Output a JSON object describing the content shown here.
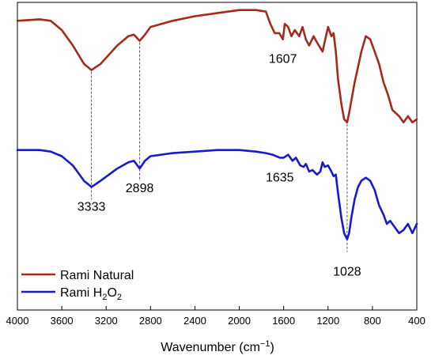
{
  "chart_data": {
    "type": "line",
    "title": "",
    "xlabel": "Wavenumber (cm",
    "xlabel_sup": "−1",
    "xlabel_close": ")",
    "ylabel": "",
    "xlim": [
      4000,
      400
    ],
    "x_reversed": true,
    "x_ticks": [
      4000,
      3600,
      3200,
      2800,
      2400,
      2000,
      1600,
      1200,
      800,
      400
    ],
    "x_tick_labels": [
      "4000",
      "3600",
      "3200",
      "2800",
      "2400",
      "2000",
      "1600",
      "1200",
      "800",
      "400"
    ],
    "y_axis_visible": false,
    "ylim": [
      0,
      100
    ],
    "grid": false,
    "legend_position": "bottom-left",
    "series": [
      {
        "name": "Rami Natural",
        "name_parts": [
          "Rami Natural"
        ],
        "color": "#a52a1a",
        "points": [
          [
            4000,
            94
          ],
          [
            3800,
            94.5
          ],
          [
            3700,
            94
          ],
          [
            3600,
            91
          ],
          [
            3500,
            86
          ],
          [
            3400,
            80
          ],
          [
            3333,
            78
          ],
          [
            3250,
            80
          ],
          [
            3100,
            86
          ],
          [
            3000,
            89
          ],
          [
            2950,
            89.5
          ],
          [
            2898,
            87.5
          ],
          [
            2850,
            89.5
          ],
          [
            2800,
            92
          ],
          [
            2600,
            94
          ],
          [
            2400,
            95.5
          ],
          [
            2200,
            96.5
          ],
          [
            2000,
            97.5
          ],
          [
            1850,
            97.5
          ],
          [
            1760,
            97
          ],
          [
            1720,
            93
          ],
          [
            1680,
            90
          ],
          [
            1640,
            90
          ],
          [
            1607,
            88
          ],
          [
            1590,
            93
          ],
          [
            1560,
            92
          ],
          [
            1530,
            89
          ],
          [
            1500,
            91
          ],
          [
            1460,
            89
          ],
          [
            1430,
            92
          ],
          [
            1400,
            88
          ],
          [
            1370,
            86
          ],
          [
            1330,
            89
          ],
          [
            1300,
            87
          ],
          [
            1250,
            84
          ],
          [
            1200,
            92
          ],
          [
            1170,
            89
          ],
          [
            1150,
            90
          ],
          [
            1130,
            84
          ],
          [
            1110,
            75
          ],
          [
            1080,
            67
          ],
          [
            1055,
            62
          ],
          [
            1028,
            61
          ],
          [
            1010,
            64
          ],
          [
            990,
            68
          ],
          [
            960,
            74
          ],
          [
            930,
            79
          ],
          [
            900,
            84
          ],
          [
            860,
            89
          ],
          [
            820,
            88
          ],
          [
            780,
            84
          ],
          [
            740,
            80
          ],
          [
            700,
            74
          ],
          [
            660,
            70
          ],
          [
            620,
            65
          ],
          [
            560,
            63
          ],
          [
            520,
            61
          ],
          [
            480,
            63
          ],
          [
            440,
            61
          ],
          [
            400,
            62
          ]
        ]
      },
      {
        "name": "Rami H₂O₂",
        "name_parts": [
          "Rami H",
          "2",
          "O",
          "2"
        ],
        "color": "#1a1acd",
        "points": [
          [
            4000,
            52
          ],
          [
            3800,
            52
          ],
          [
            3700,
            51.5
          ],
          [
            3600,
            50
          ],
          [
            3500,
            47
          ],
          [
            3400,
            42
          ],
          [
            3333,
            40
          ],
          [
            3250,
            42
          ],
          [
            3100,
            46
          ],
          [
            3000,
            48
          ],
          [
            2950,
            48.5
          ],
          [
            2898,
            46
          ],
          [
            2850,
            48.5
          ],
          [
            2800,
            50
          ],
          [
            2600,
            51
          ],
          [
            2400,
            51.5
          ],
          [
            2200,
            52
          ],
          [
            2000,
            52
          ],
          [
            1850,
            51.5
          ],
          [
            1760,
            51
          ],
          [
            1700,
            50.5
          ],
          [
            1635,
            49.5
          ],
          [
            1600,
            49.5
          ],
          [
            1560,
            50.5
          ],
          [
            1520,
            48.5
          ],
          [
            1490,
            49.5
          ],
          [
            1450,
            47
          ],
          [
            1420,
            46.5
          ],
          [
            1400,
            47.5
          ],
          [
            1370,
            45
          ],
          [
            1340,
            45.5
          ],
          [
            1300,
            44
          ],
          [
            1270,
            45
          ],
          [
            1250,
            48
          ],
          [
            1230,
            46.5
          ],
          [
            1200,
            47
          ],
          [
            1170,
            45
          ],
          [
            1150,
            43.5
          ],
          [
            1130,
            44
          ],
          [
            1110,
            38
          ],
          [
            1080,
            30
          ],
          [
            1055,
            25
          ],
          [
            1028,
            23
          ],
          [
            1010,
            25
          ],
          [
            990,
            30
          ],
          [
            960,
            36
          ],
          [
            930,
            40
          ],
          [
            900,
            42
          ],
          [
            860,
            43
          ],
          [
            820,
            42
          ],
          [
            780,
            39
          ],
          [
            740,
            34
          ],
          [
            700,
            31
          ],
          [
            670,
            28
          ],
          [
            640,
            29
          ],
          [
            600,
            27
          ],
          [
            560,
            25
          ],
          [
            520,
            26
          ],
          [
            480,
            28
          ],
          [
            440,
            25
          ],
          [
            400,
            28
          ]
        ]
      }
    ],
    "annotations": [
      {
        "label": "3333",
        "series": 1,
        "x": 3333,
        "y": 40,
        "line_from_series": 0,
        "label_at": "below-blue"
      },
      {
        "label": "2898",
        "series": 1,
        "x": 2898,
        "y": 46,
        "line_from_series": 0,
        "label_at": "below-blue"
      },
      {
        "label": "1607",
        "series": 0,
        "x": 1607,
        "y": 88,
        "label_at": "below-red"
      },
      {
        "label": "1635",
        "series": 1,
        "x": 1635,
        "y": 49.5,
        "label_at": "below-blue"
      },
      {
        "label": "1028",
        "series": 1,
        "x": 1028,
        "y": 23,
        "line_from_series": 0,
        "label_at": "below-blue"
      }
    ]
  }
}
